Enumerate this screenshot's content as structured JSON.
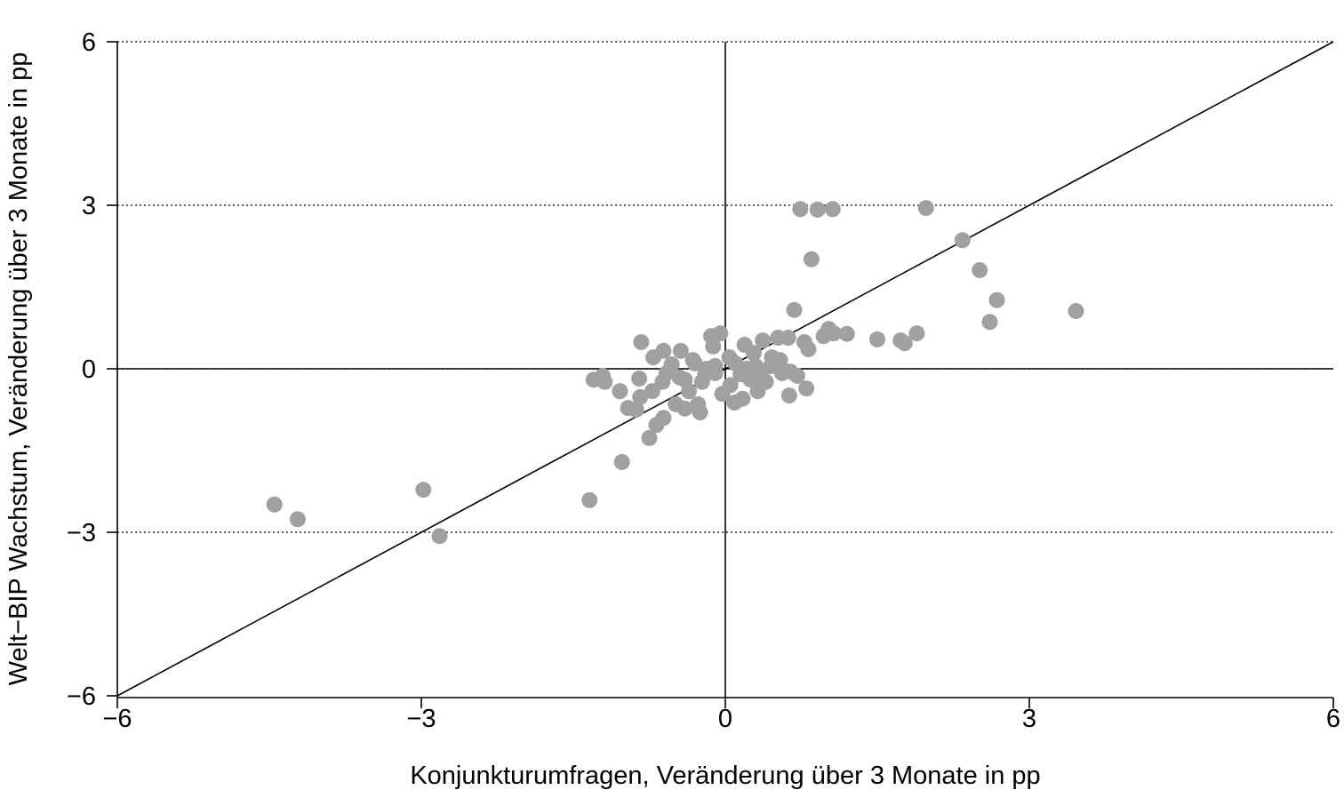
{
  "chart_data": {
    "type": "scatter",
    "xlabel": "Konjunkturumfragen, Veränderung über 3 Monate in pp",
    "ylabel": "Welt−BIP Wachstum, Veränderung über 3 Monate in pp",
    "xlim": [
      -6,
      6
    ],
    "ylim": [
      -6,
      6
    ],
    "xticks": [
      {
        "value": -6,
        "label": "−6"
      },
      {
        "value": -3,
        "label": "−3"
      },
      0,
      3,
      6
    ],
    "yticks": [
      {
        "value": -6,
        "label": "−6"
      },
      {
        "value": -3,
        "label": "−3"
      },
      0,
      3,
      6
    ],
    "grid": true,
    "color": "#a0a0a0",
    "x": [
      -4.45,
      -4.22,
      -2.98,
      -2.82,
      -1.34,
      -1.02,
      -1.3,
      -1.21,
      -1.19,
      -1.04,
      -0.96,
      -0.88,
      -0.85,
      -0.83,
      -0.84,
      -0.75,
      -0.72,
      -0.68,
      -0.71,
      -0.61,
      -0.61,
      -0.62,
      -0.58,
      -0.53,
      -0.49,
      -0.44,
      -0.4,
      -0.45,
      -0.36,
      -0.32,
      -0.27,
      -0.25,
      -0.23,
      -0.18,
      -0.14,
      -0.12,
      -0.05,
      -0.1,
      -0.03,
      0.04,
      0.09,
      0.17,
      0.19,
      0.21,
      0.28,
      0.32,
      0.37,
      0.4,
      0.46,
      0.52,
      0.54,
      0.56,
      0.62,
      0.63,
      0.64,
      0.68,
      0.71,
      0.74,
      0.78,
      0.8,
      0.82,
      0.85,
      0.91,
      0.97,
      1.02,
      1.06,
      1.07,
      1.2,
      1.5,
      1.73,
      1.77,
      1.89,
      1.98,
      2.34,
      2.51,
      2.61,
      2.68,
      3.46,
      -0.3,
      -0.2,
      -0.1,
      0.1,
      0.15,
      0.3,
      0.25,
      -0.4,
      0.05,
      0.35,
      0.45
    ],
    "y": [
      -2.49,
      -2.76,
      -2.22,
      -3.07,
      -2.41,
      -1.71,
      -0.2,
      -0.13,
      -0.24,
      -0.41,
      -0.72,
      -0.75,
      -0.18,
      0.49,
      -0.52,
      -1.27,
      -0.41,
      -1.03,
      0.21,
      -0.9,
      0.33,
      -0.24,
      -0.08,
      0.08,
      -0.65,
      0.33,
      -0.73,
      -0.16,
      -0.41,
      0.16,
      -0.65,
      -0.8,
      -0.24,
      0.0,
      0.6,
      0.41,
      0.65,
      -0.08,
      -0.46,
      0.21,
      -0.62,
      -0.55,
      0.44,
      0.0,
      0.29,
      -0.41,
      0.52,
      -0.24,
      0.21,
      0.57,
      0.16,
      -0.08,
      0.57,
      -0.49,
      -0.05,
      1.08,
      -0.13,
      2.93,
      0.49,
      -0.36,
      0.36,
      2.01,
      2.92,
      0.6,
      0.73,
      2.93,
      0.65,
      0.64,
      0.54,
      0.52,
      0.47,
      0.65,
      2.95,
      2.36,
      1.81,
      0.86,
      1.26,
      1.06,
      0.1,
      -0.1,
      0.05,
      0.1,
      -0.1,
      0.05,
      -0.2,
      -0.2,
      -0.3,
      -0.1,
      0.05
    ]
  }
}
